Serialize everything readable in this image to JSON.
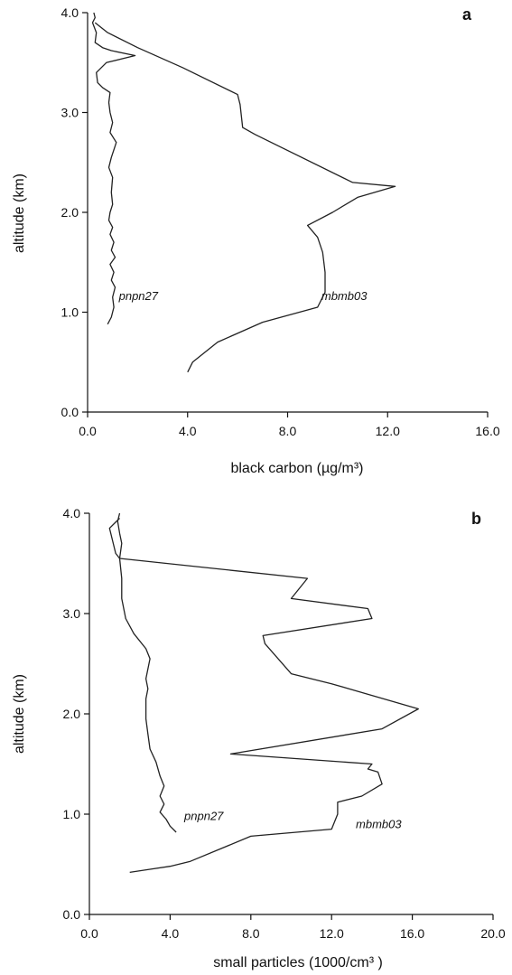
{
  "chart_data": [
    {
      "type": "line",
      "panel": "a",
      "xlabel": "black carbon (µg/m³)",
      "ylabel": "altitude (km)",
      "xlim": [
        0,
        16
      ],
      "ylim": [
        0,
        4
      ],
      "xticks": [
        "0.0",
        "4.0",
        "8.0",
        "12.0",
        "16.0"
      ],
      "yticks": [
        "0.0",
        "1.0",
        "2.0",
        "3.0",
        "4.0"
      ],
      "grid": false,
      "series": [
        {
          "name": "mbmb03",
          "label_at": [
            9.35,
            1.12
          ],
          "x": [
            4.0,
            4.2,
            5.2,
            7.0,
            9.2,
            9.5,
            9.5,
            9.4,
            9.2,
            8.8,
            9.8,
            10.8,
            12.3,
            10.6,
            6.7,
            6.2,
            6.1,
            6.0,
            3.8,
            2.0,
            0.8,
            0.3
          ],
          "y": [
            0.4,
            0.5,
            0.7,
            0.9,
            1.05,
            1.2,
            1.4,
            1.6,
            1.75,
            1.87,
            2.0,
            2.15,
            2.26,
            2.3,
            2.78,
            2.85,
            3.08,
            3.18,
            3.45,
            3.65,
            3.8,
            3.9
          ]
        },
        {
          "name": "pnpn27",
          "label_at": [
            1.25,
            1.12
          ],
          "x": [
            0.8,
            0.95,
            1.05,
            1.0,
            1.1,
            0.95,
            1.05,
            0.9,
            1.1,
            0.95,
            1.05,
            0.9,
            1.0,
            0.85,
            0.9,
            1.0,
            0.95,
            1.0,
            0.85,
            0.95,
            1.15,
            0.9,
            1.0,
            0.9,
            0.85,
            0.9,
            0.6,
            0.4,
            0.35,
            0.75,
            1.9,
            0.95,
            0.6,
            0.3,
            0.35,
            0.2,
            0.3,
            0.25
          ],
          "y": [
            0.88,
            0.95,
            1.05,
            1.15,
            1.25,
            1.32,
            1.4,
            1.48,
            1.55,
            1.62,
            1.7,
            1.78,
            1.85,
            1.92,
            2.0,
            2.08,
            2.2,
            2.35,
            2.45,
            2.55,
            2.7,
            2.8,
            2.9,
            3.0,
            3.1,
            3.2,
            3.25,
            3.3,
            3.4,
            3.5,
            3.57,
            3.62,
            3.65,
            3.7,
            3.8,
            3.9,
            3.95,
            4.0
          ]
        }
      ]
    },
    {
      "type": "line",
      "panel": "b",
      "xlabel": "small particles (1000/cm³ )",
      "ylabel": "altitude (km)",
      "xlim": [
        0,
        20
      ],
      "ylim": [
        0,
        4
      ],
      "xticks": [
        "0.0",
        "4.0",
        "8.0",
        "12.0",
        "16.0",
        "20.0"
      ],
      "yticks": [
        "0.0",
        "1.0",
        "2.0",
        "3.0",
        "4.0"
      ],
      "grid": false,
      "series": [
        {
          "name": "mbmb03",
          "label_at": [
            13.2,
            0.86
          ],
          "x": [
            2.0,
            3.0,
            4.0,
            5.0,
            8.0,
            12.0,
            12.3,
            12.3,
            13.5,
            14.5,
            14.3,
            13.8,
            14.0,
            7.0,
            14.5,
            16.3,
            12.0,
            10.0,
            8.7,
            8.6,
            14.0,
            13.8,
            10.0,
            10.8,
            1.5,
            1.3,
            1.0,
            1.5
          ],
          "y": [
            0.42,
            0.45,
            0.48,
            0.53,
            0.78,
            0.85,
            1.0,
            1.12,
            1.18,
            1.3,
            1.42,
            1.45,
            1.5,
            1.6,
            1.85,
            2.05,
            2.3,
            2.4,
            2.7,
            2.78,
            2.95,
            3.05,
            3.15,
            3.35,
            3.55,
            3.6,
            3.85,
            3.95
          ]
        },
        {
          "name": "pnpn27",
          "label_at": [
            4.7,
            0.94
          ],
          "x": [
            4.3,
            4.0,
            3.8,
            3.5,
            3.7,
            3.5,
            3.7,
            3.5,
            3.3,
            3.0,
            2.9,
            2.8,
            2.8,
            2.8,
            2.9,
            2.8,
            3.0,
            2.8,
            2.2,
            1.8,
            1.6,
            1.6,
            1.5,
            1.6,
            1.5,
            1.4,
            1.5
          ],
          "y": [
            0.82,
            0.88,
            0.95,
            1.02,
            1.1,
            1.18,
            1.28,
            1.38,
            1.52,
            1.65,
            1.8,
            1.95,
            2.05,
            2.15,
            2.25,
            2.35,
            2.55,
            2.65,
            2.8,
            2.95,
            3.15,
            3.35,
            3.55,
            3.7,
            3.8,
            3.92,
            4.0
          ]
        }
      ]
    }
  ]
}
